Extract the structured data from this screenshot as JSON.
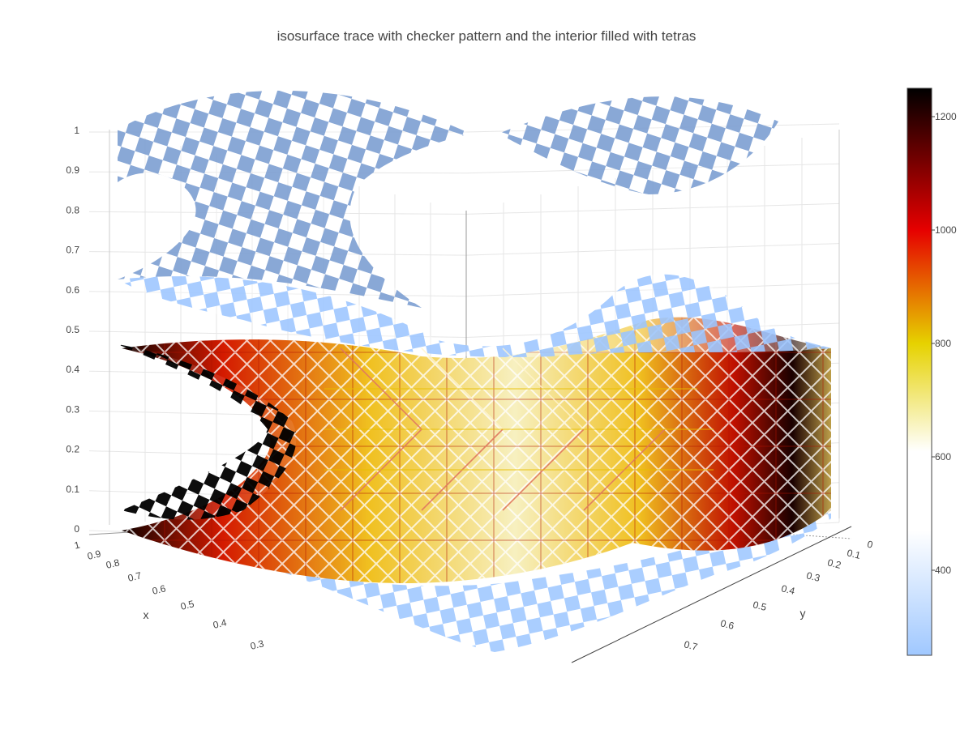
{
  "chart_data": {
    "type": "isosurface",
    "title": "isosurface trace with checker pattern and the interior filled with tetras",
    "axes": {
      "x": {
        "label": "x",
        "range": [
          0.2,
          1
        ],
        "ticks": [
          "1",
          "0.9",
          "0.8",
          "0.7",
          "0.6",
          "0.5",
          "0.4",
          "0.3"
        ]
      },
      "y": {
        "label": "y",
        "range": [
          0,
          0.8
        ],
        "ticks": [
          "0",
          "0.1",
          "0.2",
          "0.3",
          "0.4",
          "0.5",
          "0.6",
          "0.7"
        ]
      },
      "z": {
        "label": "",
        "range": [
          0,
          1
        ],
        "ticks": [
          "0",
          "0.1",
          "0.2",
          "0.3",
          "0.4",
          "0.5",
          "0.6",
          "0.7",
          "0.8",
          "0.9",
          "1"
        ]
      }
    },
    "grid": true,
    "colorbar": {
      "range": [
        250,
        1250
      ],
      "ticks": [
        "1200",
        "1000",
        "800",
        "600",
        "400"
      ],
      "tick_values": [
        1200,
        1000,
        800,
        600,
        400
      ],
      "colorscale": [
        "#000000",
        "#e60000",
        "#e6d200",
        "#ffffff",
        "#a0c8ff"
      ]
    },
    "surface_pattern": "checker",
    "interior_fill": "tetras",
    "isosurface_color": "#7fa0d2"
  }
}
